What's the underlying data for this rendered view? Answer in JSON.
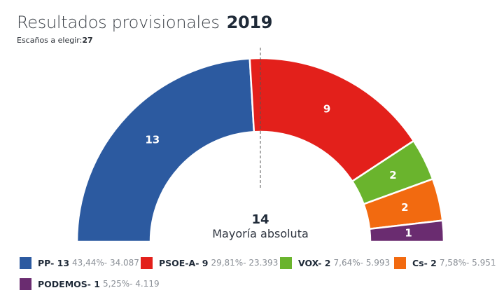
{
  "header": {
    "title": "Resultados provisionales",
    "year": "2019",
    "seats_label": "Escaños a elegir:",
    "seats_value": "27"
  },
  "majority": {
    "value": "14",
    "label": "Mayoría absoluta"
  },
  "chart_data": {
    "type": "pie",
    "subtype": "half-donut (parliament)",
    "title": "Resultados provisionales 2019",
    "total_seats": 27,
    "majority": 14,
    "series": [
      {
        "name": "PP",
        "seats": 13,
        "percent": "43,44%",
        "votes": "34.087",
        "color": "#2c5aa0",
        "legend_name": "PP- 13",
        "legend_stats": "43,44%- 34.087",
        "label": "13"
      },
      {
        "name": "PSOE-A",
        "seats": 9,
        "percent": "29,81%",
        "votes": "23.393",
        "color": "#e3201b",
        "legend_name": "PSOE-A- 9",
        "legend_stats": "29,81%- 23.393",
        "label": "9"
      },
      {
        "name": "VOX",
        "seats": 2,
        "percent": "7,64%",
        "votes": "5.993",
        "color": "#6ab42d",
        "legend_name": "VOX- 2",
        "legend_stats": "7,64%- 5.993",
        "label": "2"
      },
      {
        "name": "Cs",
        "seats": 2,
        "percent": "7,58%",
        "votes": "5.951",
        "color": "#f26a10",
        "legend_name": "Cs- 2",
        "legend_stats": "7,58%- 5.951",
        "label": "2"
      },
      {
        "name": "PODEMOS",
        "seats": 1,
        "percent": "5,25%",
        "votes": "4.119",
        "color": "#6a2c70",
        "legend_name": "PODEMOS- 1",
        "legend_stats": "5,25%- 4.119",
        "label": "1"
      }
    ]
  }
}
